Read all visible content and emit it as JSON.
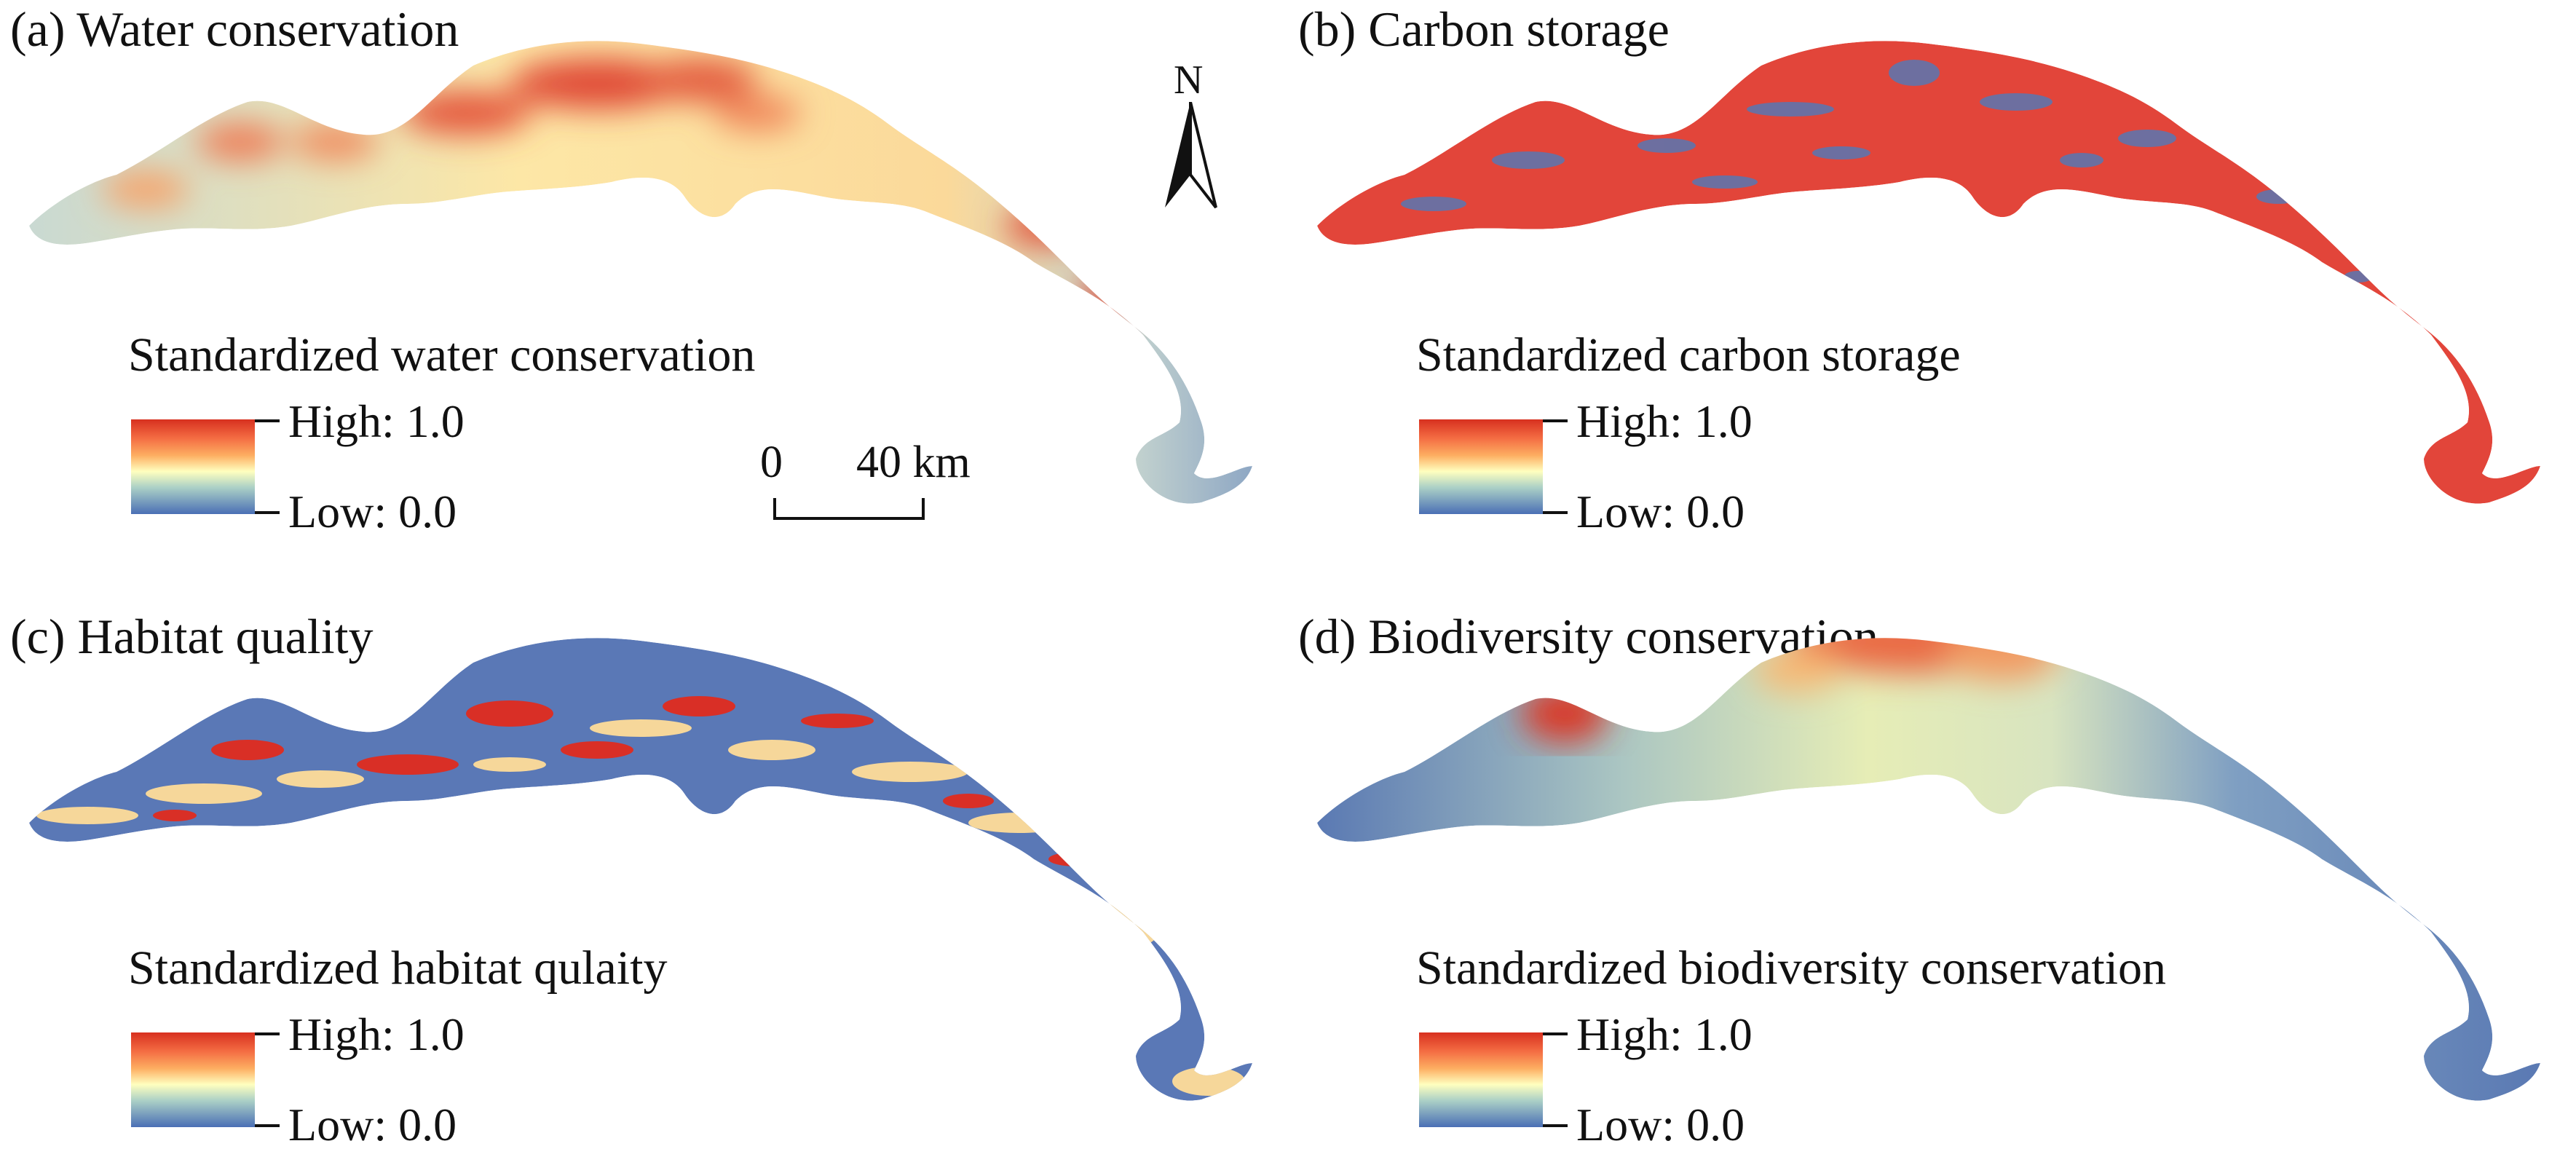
{
  "panels": [
    {
      "id": "a",
      "title": "(a) Water conservation",
      "legend_title": "Standardized water conservation",
      "high_label": "High: 1.0",
      "low_label": "Low: 0.0"
    },
    {
      "id": "b",
      "title": "(b) Carbon storage",
      "legend_title": "Standardized carbon storage",
      "high_label": "High: 1.0",
      "low_label": "Low: 0.0"
    },
    {
      "id": "c",
      "title": "(c) Habitat quality",
      "legend_title": "Standardized habitat qulaity",
      "high_label": "High: 1.0",
      "low_label": "Low: 0.0"
    },
    {
      "id": "d",
      "title": "(d) Biodiversity conservation",
      "legend_title": "Standardized biodiversity conservation",
      "high_label": "High: 1.0",
      "low_label": "Low: 0.0"
    }
  ],
  "north_arrow": {
    "label": "N"
  },
  "scale_bar": {
    "start": "0",
    "end": "40 km"
  },
  "color_ramp": [
    "#d7301f",
    "#f46d43",
    "#fdae61",
    "#ffffbf",
    "#abd0c6",
    "#4a6fb5"
  ]
}
